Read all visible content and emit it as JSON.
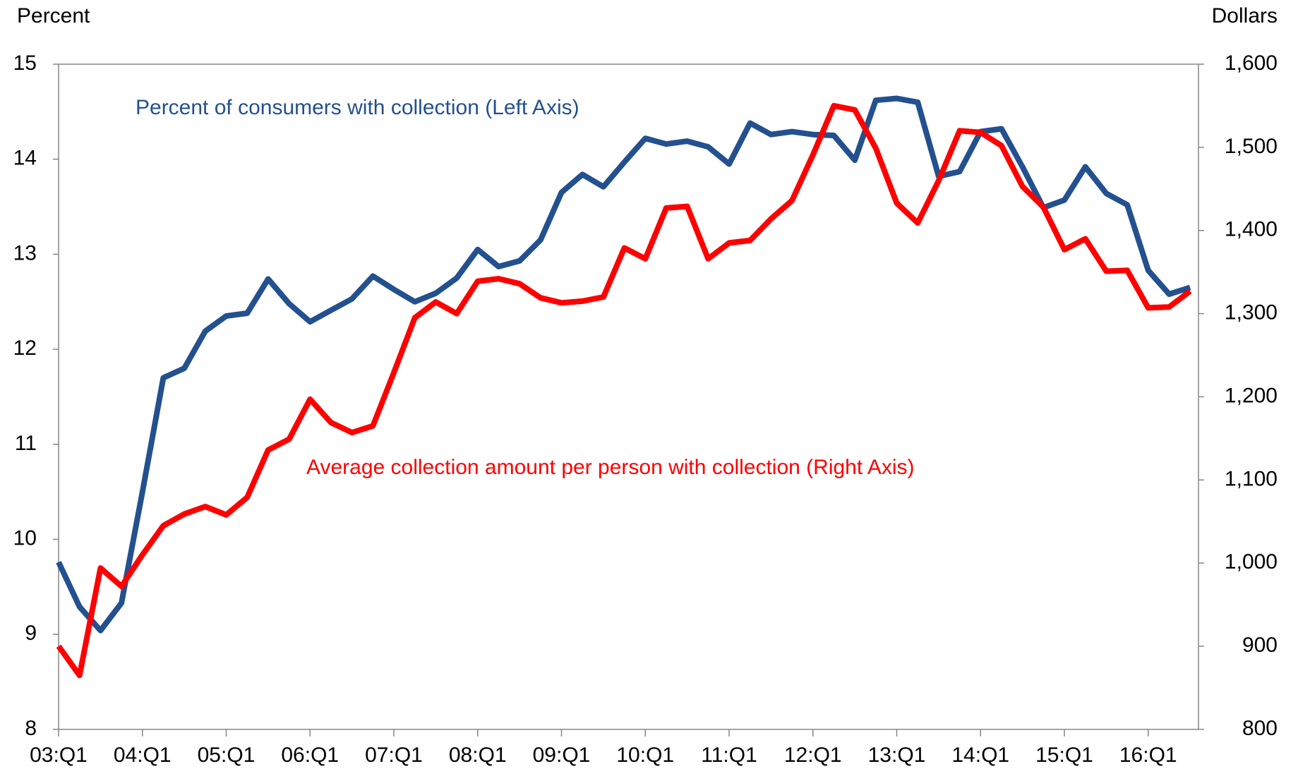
{
  "chart_data": {
    "type": "line",
    "y_label": "Percent",
    "y2_label": "Dollars",
    "categories": [
      "03:Q1",
      null,
      null,
      null,
      "04:Q1",
      null,
      null,
      null,
      "05:Q1",
      null,
      null,
      null,
      "06:Q1",
      null,
      null,
      null,
      "07:Q1",
      null,
      null,
      null,
      "08:Q1",
      null,
      null,
      null,
      "09:Q1",
      null,
      null,
      null,
      "10:Q1",
      null,
      null,
      null,
      "11:Q1",
      null,
      null,
      null,
      "12:Q1",
      null,
      null,
      null,
      "13:Q1",
      null,
      null,
      null,
      "14:Q1",
      null,
      null,
      null,
      "15:Q1",
      null,
      null,
      null,
      "16:Q1",
      null,
      null
    ],
    "series": [
      {
        "name": "Percent of consumers with collection (Left Axis)",
        "color": "#23508e",
        "axis": "y",
        "values": [
          9.76,
          9.29,
          9.04,
          9.33,
          10.5,
          11.7,
          11.8,
          12.19,
          12.35,
          12.38,
          12.74,
          12.48,
          12.29,
          12.41,
          12.53,
          12.77,
          12.63,
          12.5,
          12.59,
          12.75,
          13.05,
          12.87,
          12.93,
          13.15,
          13.65,
          13.84,
          13.71,
          13.97,
          14.22,
          14.16,
          14.19,
          14.13,
          13.95,
          14.38,
          14.26,
          14.29,
          14.26,
          14.25,
          13.99,
          14.62,
          14.64,
          14.6,
          13.82,
          13.87,
          14.29,
          14.32,
          13.92,
          13.49,
          13.57,
          13.92,
          13.64,
          13.52,
          12.83,
          12.58,
          12.65
        ]
      },
      {
        "name": "Average collection amount per person with collection (Right Axis)",
        "color": "#ff0000",
        "axis": "y2",
        "values": [
          900,
          865,
          994,
          972,
          1010,
          1045,
          1059,
          1068,
          1058,
          1079,
          1136,
          1149,
          1197,
          1169,
          1157,
          1165,
          1229,
          1295,
          1314,
          1300,
          1339,
          1342,
          1336,
          1319,
          1313,
          1315,
          1320,
          1379,
          1366,
          1427,
          1429,
          1366,
          1385,
          1388,
          1414,
          1436,
          1491,
          1550,
          1545,
          1499,
          1433,
          1409,
          1460,
          1520,
          1518,
          1502,
          1453,
          1428,
          1377,
          1390,
          1351,
          1352,
          1307,
          1308,
          1327
        ]
      }
    ],
    "ylim": [
      8,
      15
    ],
    "yticks": [
      8,
      9,
      10,
      11,
      12,
      13,
      14,
      15
    ],
    "y2lim": [
      800,
      1600
    ],
    "y2ticks": [
      800,
      900,
      {
        "value": 1000,
        "label": "1,000"
      },
      {
        "value": 1100,
        "label": "1,100"
      },
      {
        "value": 1200,
        "label": "1,200"
      },
      {
        "value": 1300,
        "label": "1,300"
      },
      {
        "value": 1400,
        "label": "1,400"
      },
      {
        "value": 1500,
        "label": "1,500"
      },
      {
        "value": 1600,
        "label": "1,600"
      }
    ],
    "grid": false
  }
}
